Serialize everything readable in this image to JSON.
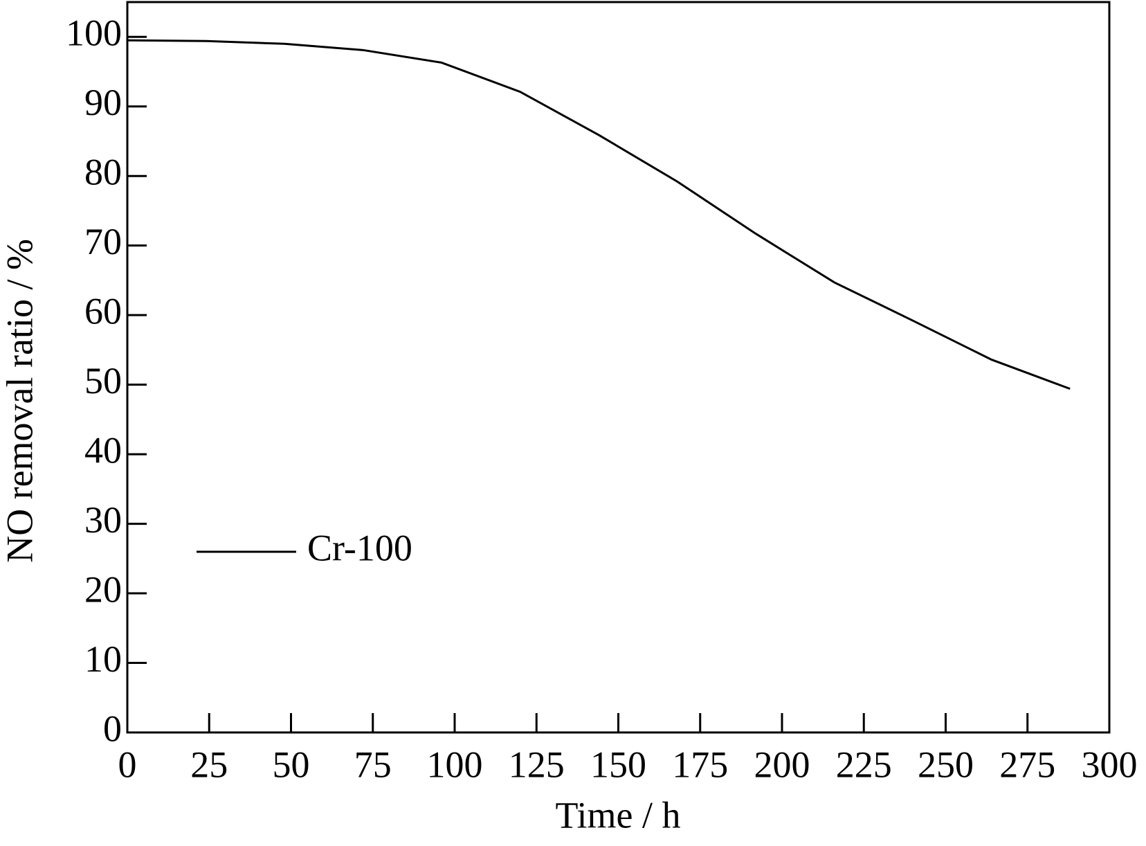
{
  "chart_data": {
    "type": "line",
    "x_label": "Time / h",
    "y_label": "NO removal ratio / %",
    "series": [
      {
        "name": "Cr-100",
        "color": "#000000",
        "x": [
          0,
          24,
          48,
          72,
          96,
          120,
          144,
          168,
          192,
          216,
          240,
          264,
          288
        ],
        "values": [
          99.5,
          99.4,
          99.0,
          98.1,
          96.3,
          92.1,
          85.9,
          79.2,
          71.7,
          64.7,
          59.2,
          53.6,
          49.4
        ]
      }
    ],
    "xlim": [
      0,
      300
    ],
    "xticks": [
      0,
      25,
      50,
      75,
      100,
      125,
      150,
      175,
      200,
      225,
      250,
      275,
      300
    ],
    "ylim": [
      0,
      105
    ],
    "yticks": [
      0,
      10,
      20,
      30,
      40,
      50,
      60,
      70,
      80,
      90,
      100
    ],
    "grid": false,
    "legend": "lower left"
  }
}
